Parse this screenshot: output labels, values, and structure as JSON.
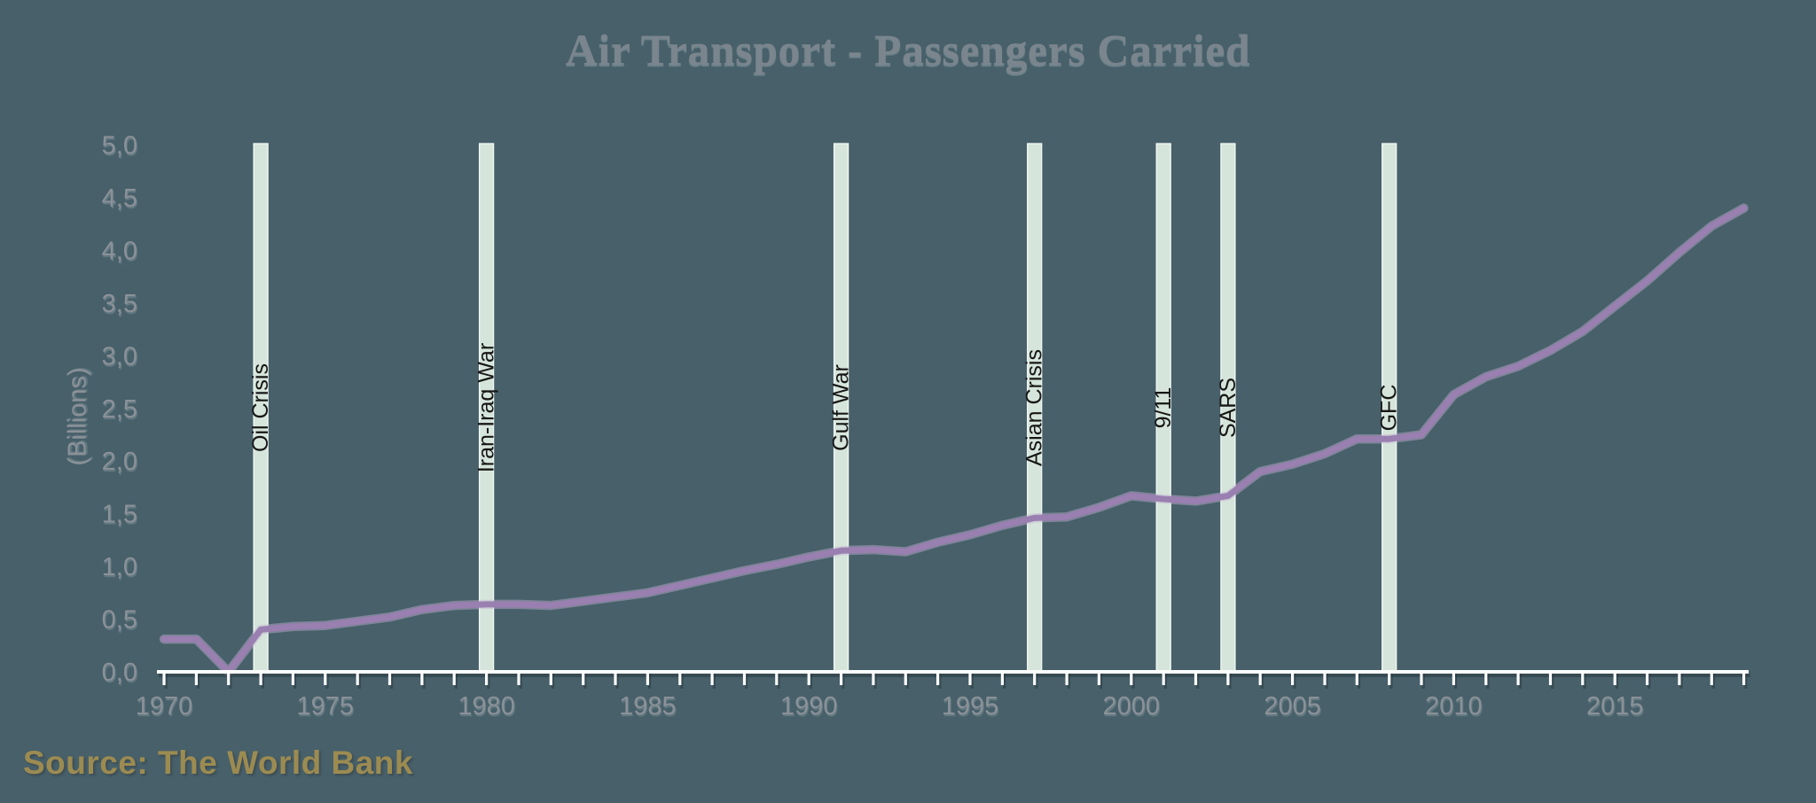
{
  "title": "Air Transport - Passengers Carried",
  "y_axis_title": "(Billions)",
  "source_note": "Source: The World Bank",
  "chart_data": {
    "type": "line",
    "title": "Air Transport - Passengers Carried",
    "xlabel": "",
    "ylabel": "(Billions)",
    "ylim": [
      0,
      5
    ],
    "grid": false,
    "legend": "none",
    "y_tick_labels": [
      "0,0",
      "0,5",
      "1,0",
      "1,5",
      "2,0",
      "2,5",
      "3,0",
      "3,5",
      "4,0",
      "4,5",
      "5,0"
    ],
    "x_tick_years": [
      1970,
      1975,
      1980,
      1985,
      1990,
      1995,
      2000,
      2005,
      2010,
      2015
    ],
    "x": [
      1970,
      1971,
      1972,
      1973,
      1974,
      1975,
      1976,
      1977,
      1978,
      1979,
      1980,
      1981,
      1982,
      1983,
      1984,
      1985,
      1986,
      1987,
      1988,
      1989,
      1990,
      1991,
      1992,
      1993,
      1994,
      1995,
      1996,
      1997,
      1998,
      1999,
      2000,
      2001,
      2002,
      2003,
      2004,
      2005,
      2006,
      2007,
      2008,
      2009,
      2010,
      2011,
      2012,
      2013,
      2014,
      2015,
      2016,
      2017,
      2018,
      2019
    ],
    "values": [
      0.31,
      0.31,
      0.0,
      0.4,
      0.43,
      0.44,
      0.48,
      0.52,
      0.59,
      0.63,
      0.64,
      0.64,
      0.63,
      0.67,
      0.71,
      0.75,
      0.82,
      0.89,
      0.96,
      1.02,
      1.09,
      1.15,
      1.16,
      1.14,
      1.23,
      1.3,
      1.39,
      1.46,
      1.47,
      1.56,
      1.67,
      1.64,
      1.62,
      1.67,
      1.9,
      1.97,
      2.07,
      2.21,
      2.21,
      2.25,
      2.63,
      2.8,
      2.9,
      3.05,
      3.23,
      3.47,
      3.71,
      3.98,
      4.23,
      4.4
    ],
    "events": [
      {
        "label": "Oil Crisis",
        "year": 1973
      },
      {
        "label": "Iran-Iraq War",
        "year": 1980
      },
      {
        "label": "Gulf War",
        "year": 1991
      },
      {
        "label": "Asian Crisis",
        "year": 1997
      },
      {
        "label": "9/11",
        "year": 2001
      },
      {
        "label": "SARS",
        "year": 2003
      },
      {
        "label": "GFC",
        "year": 2008
      }
    ],
    "colors": {
      "background": "#47606a",
      "line": "#9a7fb1",
      "line_halo": "#c2b2d1",
      "band": "#d6e5db",
      "band_edge": "#f2f8f4",
      "axis": "#fcfdfd",
      "axis_shadow": "rgba(30,42,48,0.38)",
      "tick_label": "#8b9198",
      "event_label": "#161616",
      "title": "#7b858d",
      "source": "#9c8b51"
    }
  }
}
